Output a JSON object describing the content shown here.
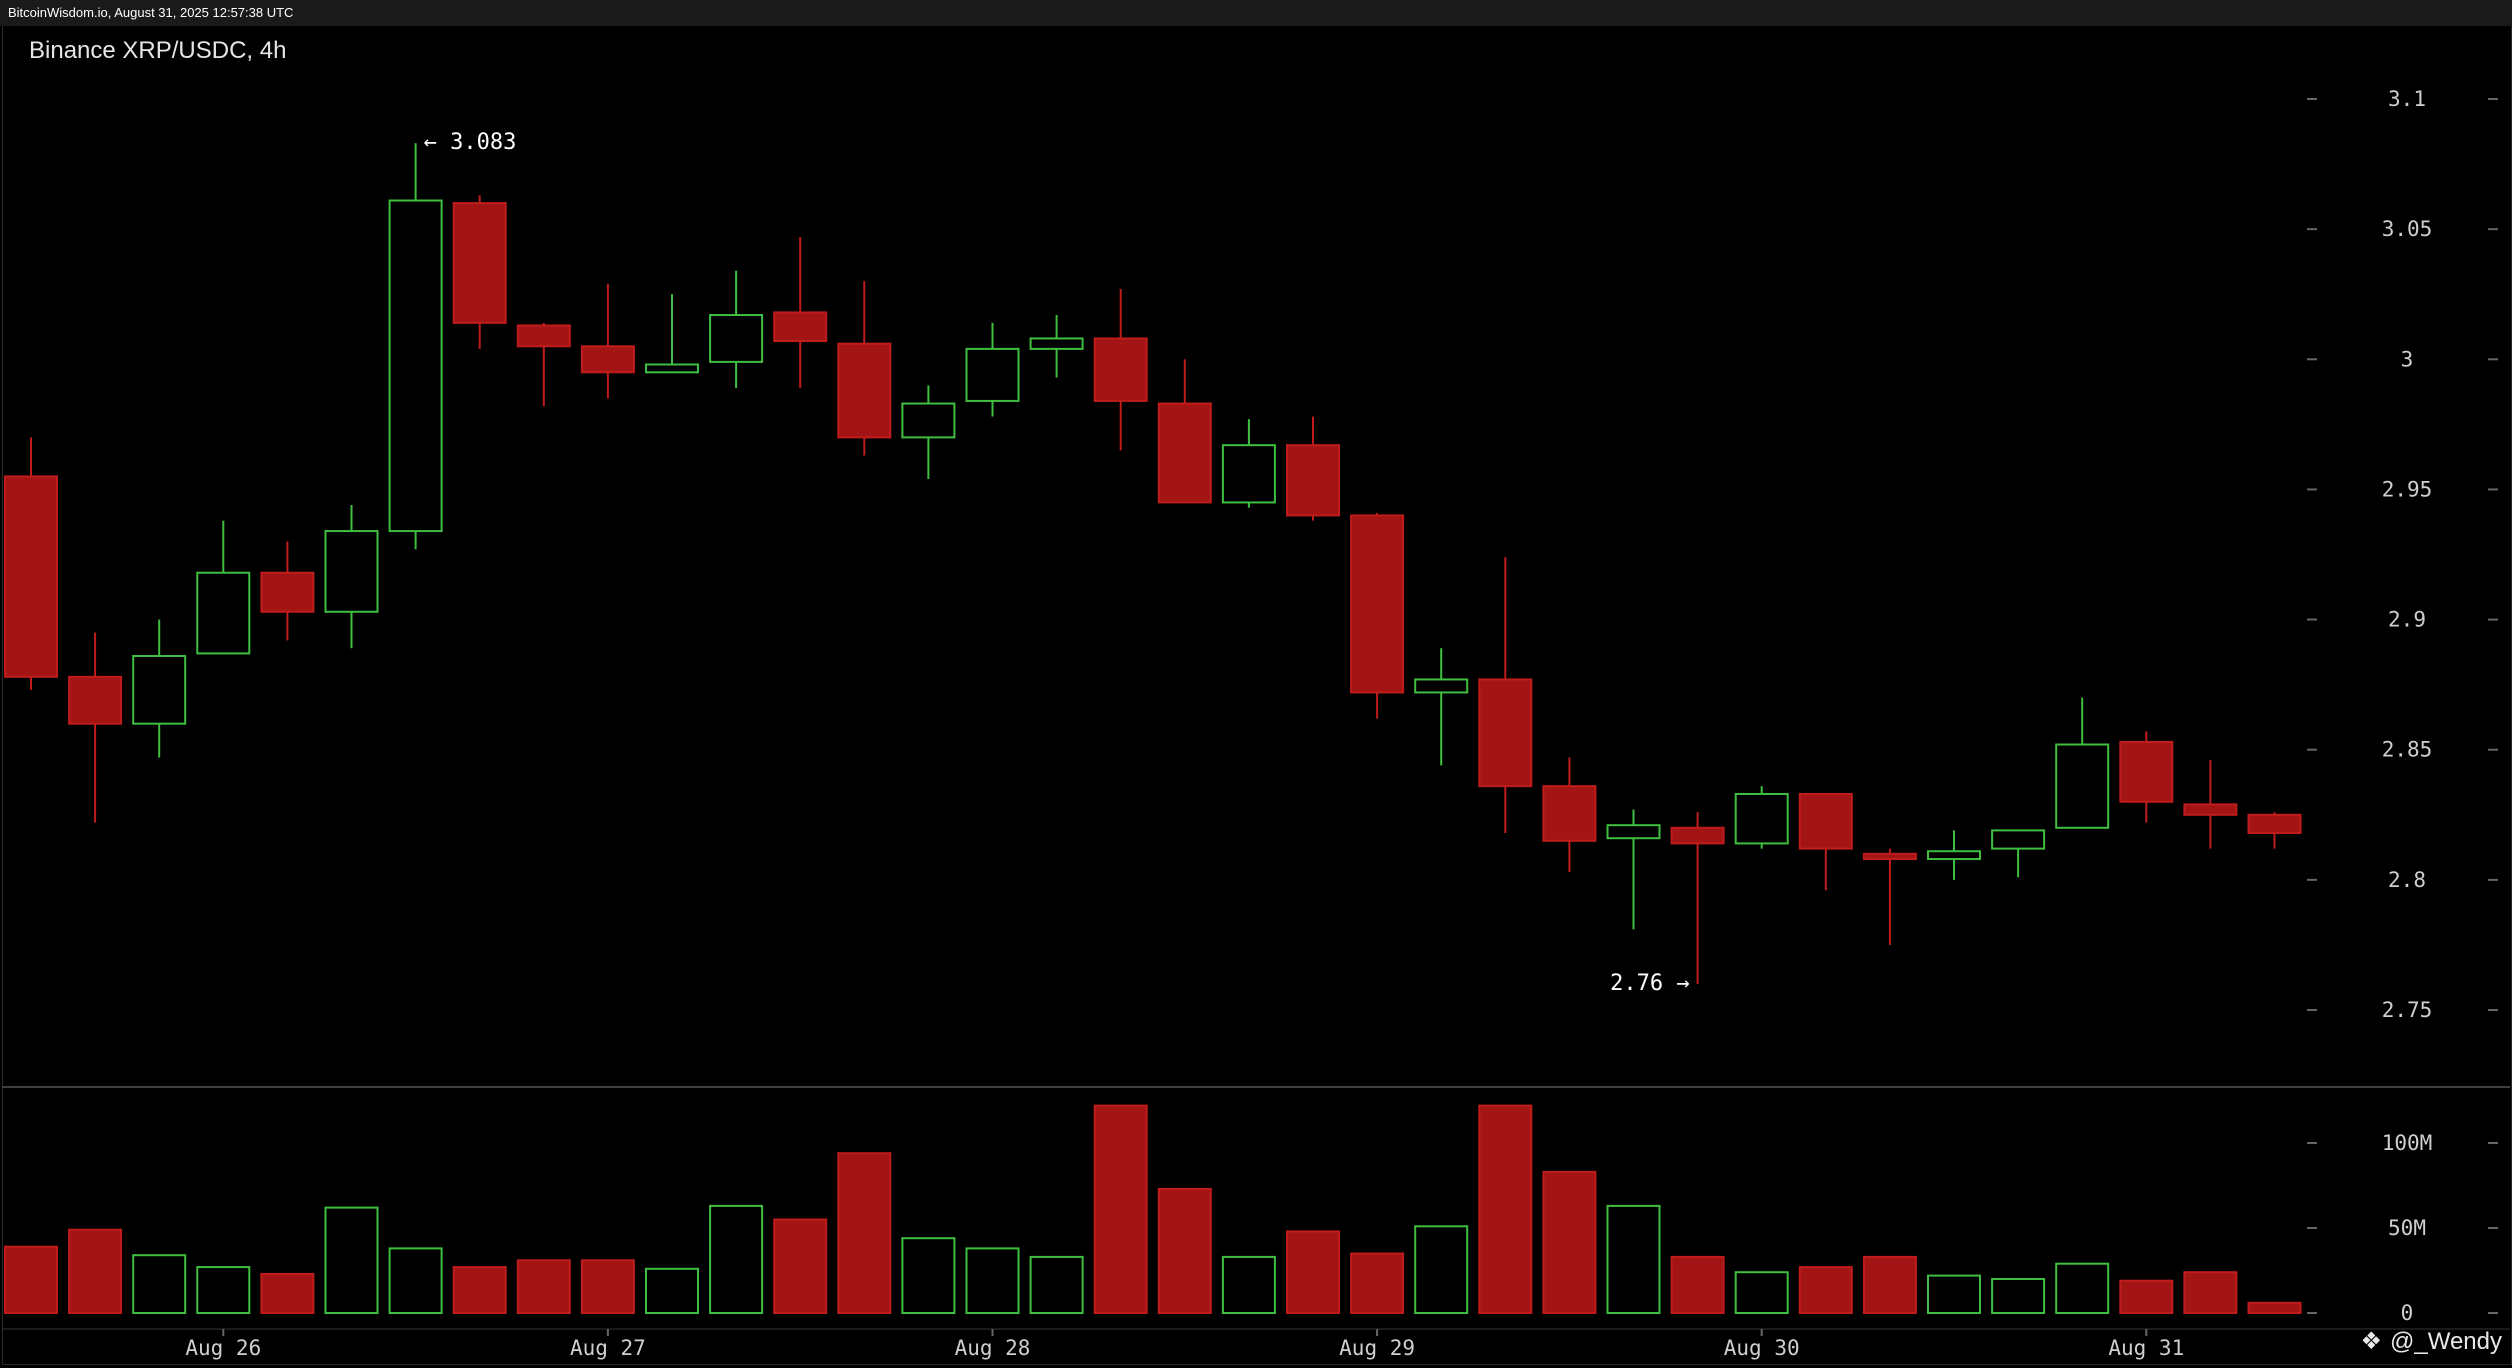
{
  "header": {
    "timestamp": "BitcoinWisdom.io, August 31, 2025 12:57:38 UTC"
  },
  "chart_title": "Binance XRP/USDC, 4h",
  "watermark": {
    "text": "@_Wendy",
    "icon": "diamond-logo-icon"
  },
  "colors": {
    "up": "#3fbf3f",
    "down": "#a31515",
    "down_border": "#c01c1c",
    "background": "#000000"
  },
  "chart_data": {
    "type": "candlestick",
    "price_axis": {
      "ticks": [
        2.75,
        2.8,
        2.85,
        2.9,
        2.95,
        3,
        3.05,
        3.1
      ],
      "tick_labels": [
        "2.75",
        "2.8",
        "2.85",
        "2.9",
        "2.95",
        "3",
        "3.05",
        "3.1"
      ],
      "range": [
        2.72,
        3.12
      ]
    },
    "volume_axis": {
      "ticks": [
        0,
        50,
        100
      ],
      "tick_labels": [
        "0",
        "50M",
        "100M"
      ],
      "range": [
        0,
        125
      ]
    },
    "date_labels": [
      {
        "label": "Aug 26",
        "index": 3
      },
      {
        "label": "Aug 27",
        "index": 9
      },
      {
        "label": "Aug 28",
        "index": 15
      },
      {
        "label": "Aug 29",
        "index": 21
      },
      {
        "label": "Aug 30",
        "index": 27
      },
      {
        "label": "Aug 31",
        "index": 33
      }
    ],
    "annotations": [
      {
        "text": "← 3.083",
        "index": 6,
        "value": 3.083,
        "side": "right"
      },
      {
        "text": "2.76 →",
        "index": 26,
        "value": 2.76,
        "side": "left"
      }
    ],
    "candles": [
      {
        "o": 2.955,
        "h": 2.97,
        "l": 2.873,
        "c": 2.878,
        "v": 39
      },
      {
        "o": 2.878,
        "h": 2.895,
        "l": 2.822,
        "c": 2.86,
        "v": 49
      },
      {
        "o": 2.86,
        "h": 2.9,
        "l": 2.847,
        "c": 2.886,
        "v": 34
      },
      {
        "o": 2.887,
        "h": 2.938,
        "l": 2.887,
        "c": 2.918,
        "v": 27
      },
      {
        "o": 2.918,
        "h": 2.93,
        "l": 2.892,
        "c": 2.903,
        "v": 23
      },
      {
        "o": 2.903,
        "h": 2.944,
        "l": 2.889,
        "c": 2.934,
        "v": 62
      },
      {
        "o": 2.934,
        "h": 3.083,
        "l": 2.927,
        "c": 3.061,
        "v": 38
      },
      {
        "o": 3.06,
        "h": 3.063,
        "l": 3.004,
        "c": 3.014,
        "v": 27
      },
      {
        "o": 3.013,
        "h": 3.014,
        "l": 2.982,
        "c": 3.005,
        "v": 31
      },
      {
        "o": 3.005,
        "h": 3.029,
        "l": 2.985,
        "c": 2.995,
        "v": 31
      },
      {
        "o": 2.995,
        "h": 3.025,
        "l": 2.995,
        "c": 2.998,
        "v": 26
      },
      {
        "o": 2.999,
        "h": 3.034,
        "l": 2.989,
        "c": 3.017,
        "v": 63
      },
      {
        "o": 3.018,
        "h": 3.047,
        "l": 2.989,
        "c": 3.007,
        "v": 55
      },
      {
        "o": 3.006,
        "h": 3.03,
        "l": 2.963,
        "c": 2.97,
        "v": 94
      },
      {
        "o": 2.97,
        "h": 2.99,
        "l": 2.954,
        "c": 2.983,
        "v": 44
      },
      {
        "o": 2.984,
        "h": 3.014,
        "l": 2.978,
        "c": 3.004,
        "v": 38
      },
      {
        "o": 3.004,
        "h": 3.017,
        "l": 2.993,
        "c": 3.008,
        "v": 33
      },
      {
        "o": 3.008,
        "h": 3.027,
        "l": 2.965,
        "c": 2.984,
        "v": 122
      },
      {
        "o": 2.983,
        "h": 3.0,
        "l": 2.945,
        "c": 2.945,
        "v": 73
      },
      {
        "o": 2.945,
        "h": 2.977,
        "l": 2.943,
        "c": 2.967,
        "v": 33
      },
      {
        "o": 2.967,
        "h": 2.978,
        "l": 2.938,
        "c": 2.94,
        "v": 48
      },
      {
        "o": 2.94,
        "h": 2.941,
        "l": 2.862,
        "c": 2.872,
        "v": 35
      },
      {
        "o": 2.872,
        "h": 2.889,
        "l": 2.844,
        "c": 2.877,
        "v": 51
      },
      {
        "o": 2.877,
        "h": 2.924,
        "l": 2.818,
        "c": 2.836,
        "v": 122
      },
      {
        "o": 2.836,
        "h": 2.847,
        "l": 2.803,
        "c": 2.815,
        "v": 83
      },
      {
        "o": 2.816,
        "h": 2.827,
        "l": 2.781,
        "c": 2.821,
        "v": 63
      },
      {
        "o": 2.82,
        "h": 2.826,
        "l": 2.76,
        "c": 2.814,
        "v": 33
      },
      {
        "o": 2.814,
        "h": 2.836,
        "l": 2.812,
        "c": 2.833,
        "v": 24
      },
      {
        "o": 2.833,
        "h": 2.833,
        "l": 2.796,
        "c": 2.812,
        "v": 27
      },
      {
        "o": 2.81,
        "h": 2.812,
        "l": 2.775,
        "c": 2.808,
        "v": 33
      },
      {
        "o": 2.808,
        "h": 2.819,
        "l": 2.8,
        "c": 2.811,
        "v": 22
      },
      {
        "o": 2.812,
        "h": 2.819,
        "l": 2.801,
        "c": 2.819,
        "v": 20
      },
      {
        "o": 2.82,
        "h": 2.87,
        "l": 2.82,
        "c": 2.852,
        "v": 29
      },
      {
        "o": 2.853,
        "h": 2.857,
        "l": 2.822,
        "c": 2.83,
        "v": 19
      },
      {
        "o": 2.829,
        "h": 2.846,
        "l": 2.812,
        "c": 2.825,
        "v": 24
      },
      {
        "o": 2.825,
        "h": 2.826,
        "l": 2.812,
        "c": 2.818,
        "v": 6
      }
    ]
  }
}
